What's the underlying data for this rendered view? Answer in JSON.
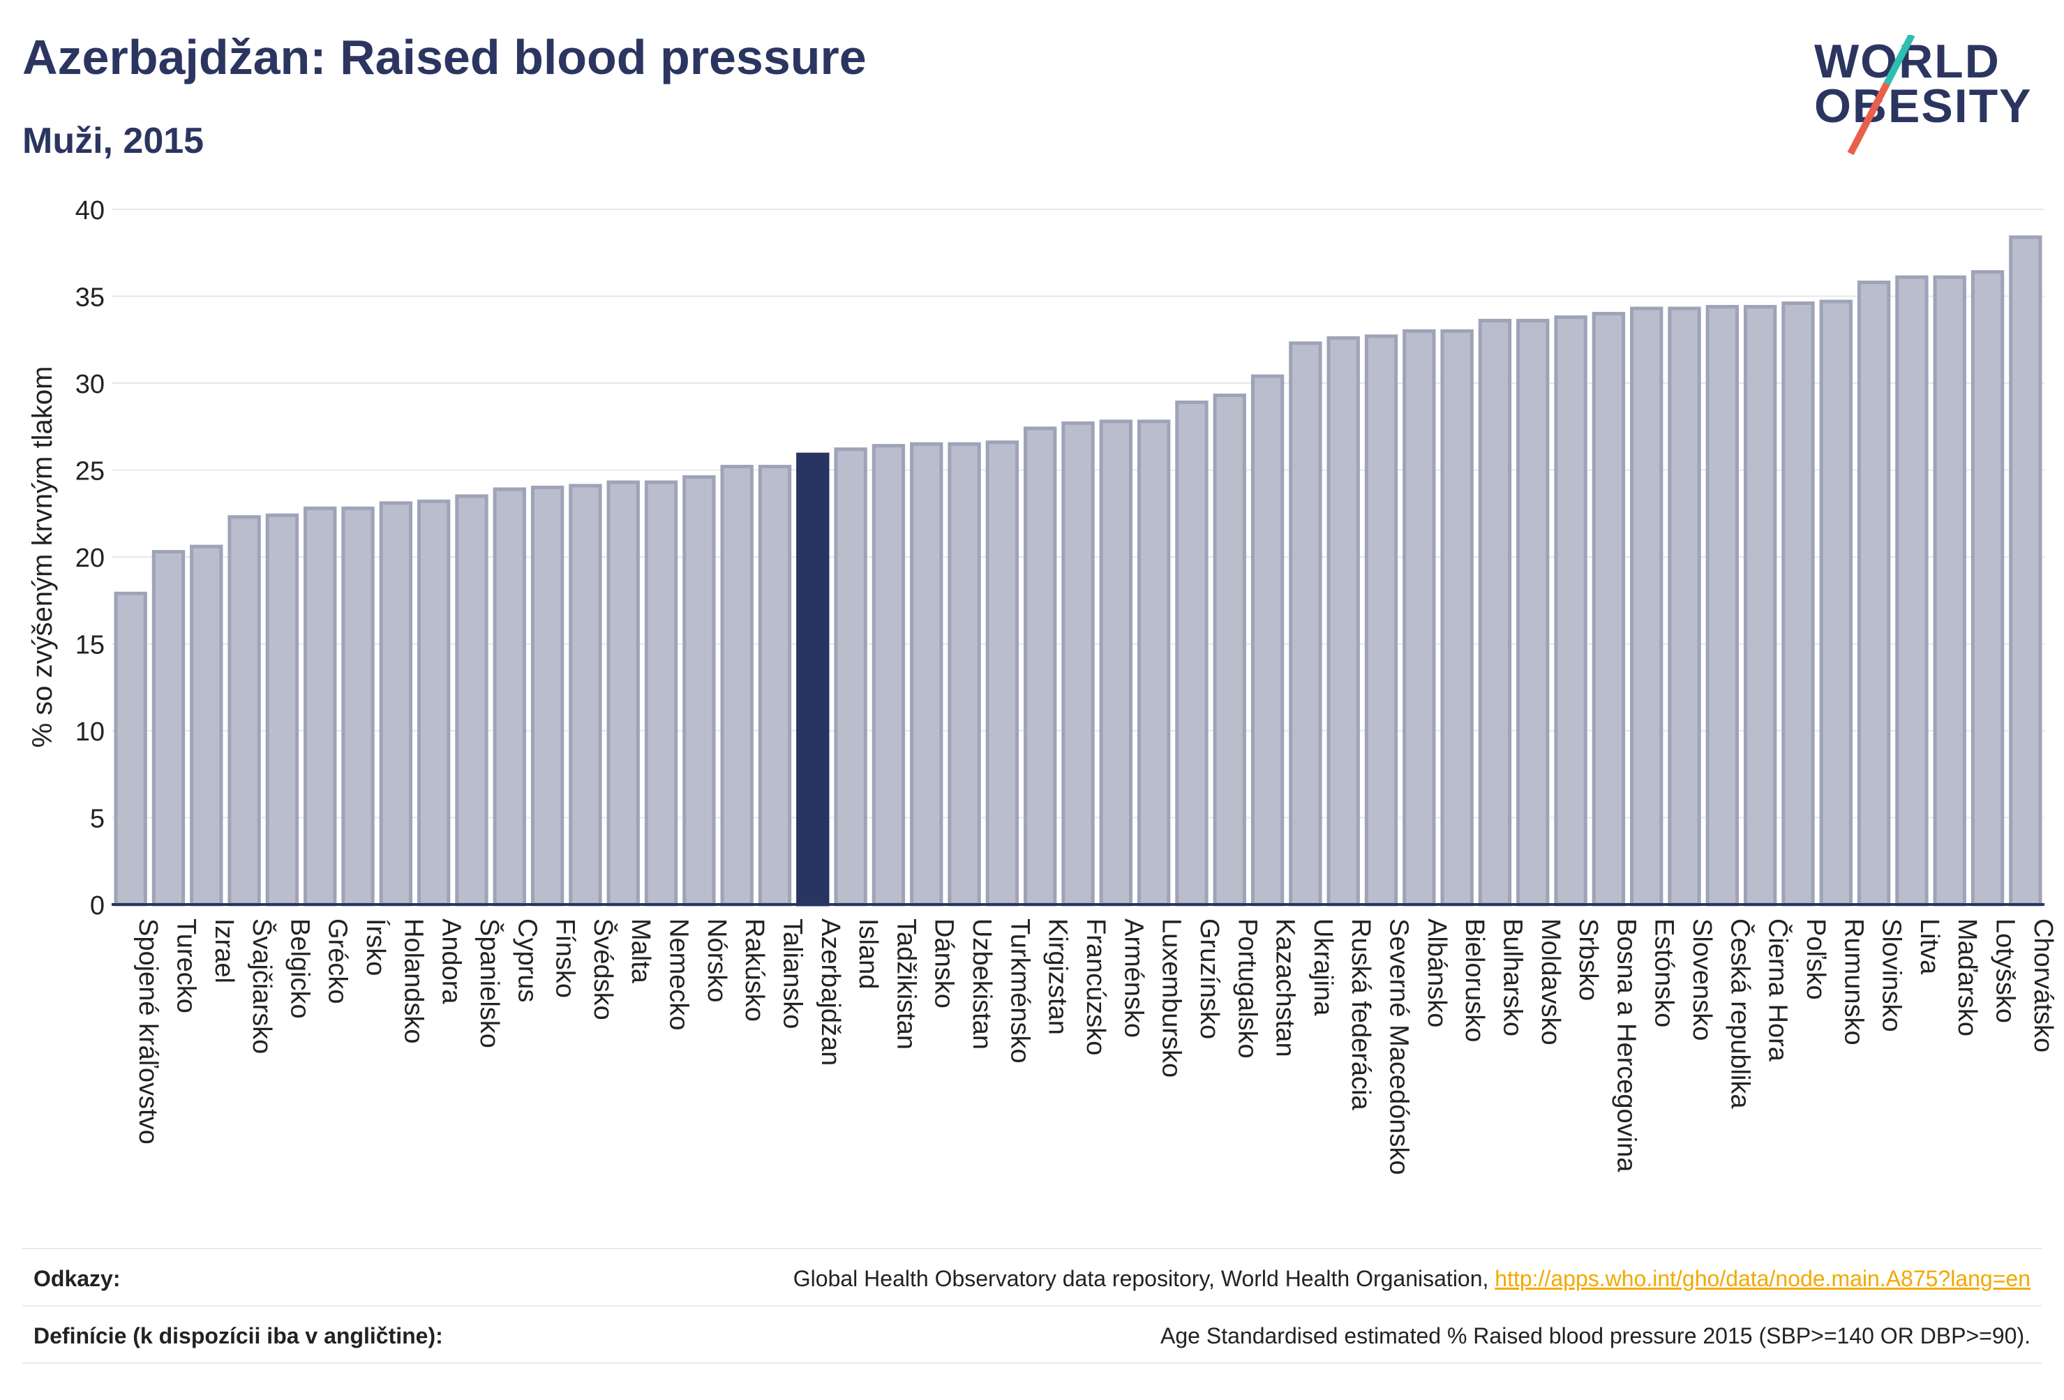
{
  "header": {
    "title": "Azerbajdžan: Raised blood pressure",
    "subtitle": "Muži, 2015"
  },
  "logo": {
    "line1": "WORLD",
    "line2": "OBESITY",
    "colors": {
      "text": "#2b3560",
      "slash_top": "#2ebfb3",
      "slash_bottom": "#e8604c"
    }
  },
  "colors": {
    "bar_default": "#b9bdcc",
    "bar_border": "#9ea3b8",
    "bar_highlight": "#283461",
    "axis": "#2b3560",
    "grid": "#e6e7ee"
  },
  "chart_data": {
    "type": "bar",
    "ylabel": "% so zvýšeným krvným tlakom",
    "xlabel": "",
    "ylim": [
      0,
      40
    ],
    "yticks": [
      0,
      5,
      10,
      15,
      20,
      25,
      30,
      35,
      40
    ],
    "grid": true,
    "highlight": "Azerbajdžan",
    "categories": [
      "Spojené kráľovstvo",
      "Turecko",
      "Izrael",
      "Švajčiarsko",
      "Belgicko",
      "Grécko",
      "Írsko",
      "Holandsko",
      "Andora",
      "Španielsko",
      "Cyprus",
      "Fínsko",
      "Švédsko",
      "Malta",
      "Nemecko",
      "Nórsko",
      "Rakúsko",
      "Taliansko",
      "Azerbajdžan",
      "Island",
      "Tadžikistan",
      "Dánsko",
      "Uzbekistan",
      "Turkménsko",
      "Kirgizstan",
      "Francúzsko",
      "Arménsko",
      "Luxembursko",
      "Gruzínsko",
      "Portugalsko",
      "Kazachstan",
      "Ukrajina",
      "Ruská federácia",
      "Severné Macedónsko",
      "Albánsko",
      "Bielorusko",
      "Bulharsko",
      "Moldavsko",
      "Srbsko",
      "Bosna a Hercegovina",
      "Estónsko",
      "Slovensko",
      "Česká republika",
      "Čierna Hora",
      "Poľsko",
      "Rumunsko",
      "Slovinsko",
      "Litva",
      "Maďarsko",
      "Lotyšsko",
      "Chorvátsko"
    ],
    "values": [
      17.9,
      20.3,
      20.6,
      22.3,
      22.4,
      22.8,
      22.8,
      23.1,
      23.2,
      23.5,
      23.9,
      24.0,
      24.1,
      24.3,
      24.3,
      24.6,
      25.2,
      25.2,
      25.9,
      26.2,
      26.4,
      26.5,
      26.5,
      26.6,
      27.4,
      27.7,
      27.8,
      27.8,
      28.9,
      29.3,
      30.4,
      32.3,
      32.6,
      32.7,
      33.0,
      33.0,
      33.6,
      33.6,
      33.8,
      34.0,
      34.3,
      34.3,
      34.4,
      34.4,
      34.6,
      34.7,
      35.8,
      36.1,
      36.1,
      36.4,
      38.4
    ]
  },
  "footer": {
    "sources_label": "Odkazy:",
    "sources_text": "Global Health Observatory data repository, World Health Organisation,",
    "sources_link": "http://apps.who.int/gho/data/node.main.A875?lang=en",
    "definitions_label": "Definície (k dispozícii iba v angličtine):",
    "definitions_text": "Age Standardised estimated % Raised blood pressure 2015 (SBP>=140 OR DBP>=90)."
  }
}
